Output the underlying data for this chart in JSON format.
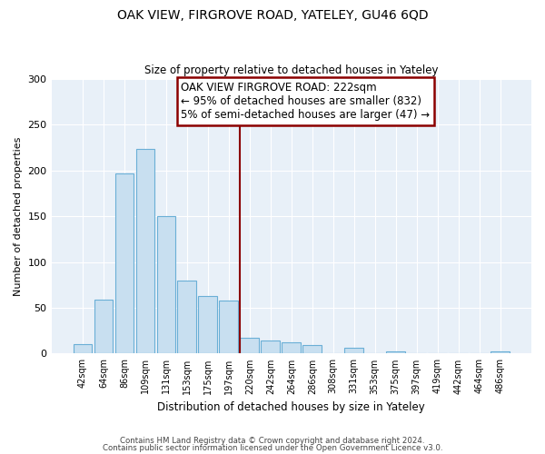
{
  "title": "OAK VIEW, FIRGROVE ROAD, YATELEY, GU46 6QD",
  "subtitle": "Size of property relative to detached houses in Yateley",
  "xlabel": "Distribution of detached houses by size in Yateley",
  "ylabel": "Number of detached properties",
  "bar_labels": [
    "42sqm",
    "64sqm",
    "86sqm",
    "109sqm",
    "131sqm",
    "153sqm",
    "175sqm",
    "197sqm",
    "220sqm",
    "242sqm",
    "264sqm",
    "286sqm",
    "308sqm",
    "331sqm",
    "353sqm",
    "375sqm",
    "397sqm",
    "419sqm",
    "442sqm",
    "464sqm",
    "486sqm"
  ],
  "bar_values": [
    10,
    59,
    197,
    224,
    150,
    80,
    63,
    58,
    17,
    14,
    12,
    9,
    0,
    6,
    0,
    2,
    0,
    0,
    0,
    0,
    2
  ],
  "bar_color": "#c8dff0",
  "bar_edge_color": "#6aafd6",
  "vline_x": 8.0,
  "vline_color": "#8b0000",
  "annotation_title": "OAK VIEW FIRGROVE ROAD: 222sqm",
  "annotation_line1": "← 95% of detached houses are smaller (832)",
  "annotation_line2": "5% of semi-detached houses are larger (47) →",
  "annotation_box_edge": "#8b0000",
  "plot_bg_color": "#e8f0f8",
  "ylim": [
    0,
    300
  ],
  "yticks": [
    0,
    50,
    100,
    150,
    200,
    250,
    300
  ],
  "footnote1": "Contains HM Land Registry data © Crown copyright and database right 2024.",
  "footnote2": "Contains public sector information licensed under the Open Government Licence v3.0."
}
